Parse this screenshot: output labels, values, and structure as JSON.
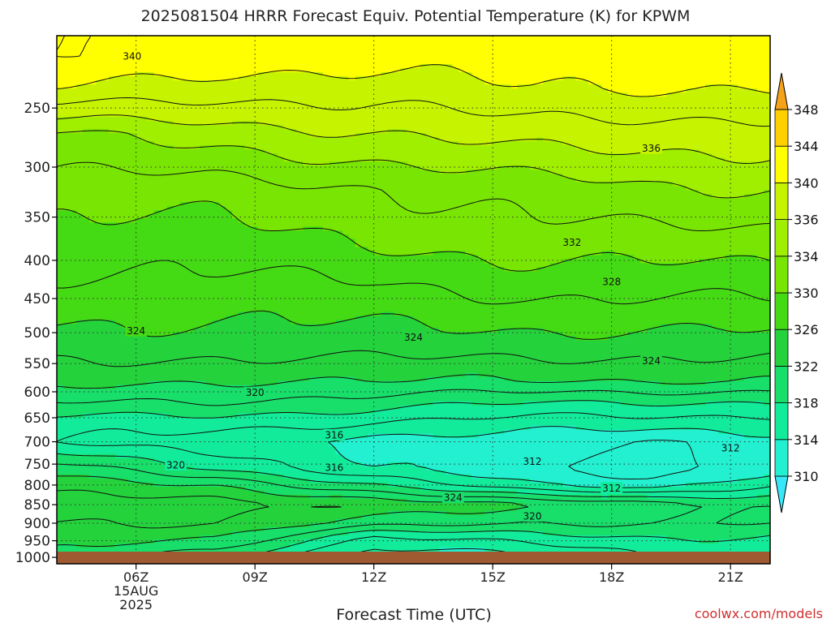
{
  "chart_data": {
    "type": "heatmap",
    "title": "2025081504 HRRR Forecast Equiv. Potential Temperature (K) for KPWM",
    "xlabel": "Forecast Time (UTC)",
    "ylabel": "",
    "x_axis": {
      "unit": "UTC hour",
      "range": [
        4,
        22
      ],
      "ticks": [
        {
          "value": 6,
          "label": "06Z",
          "sublabel": [
            "15AUG",
            "2025"
          ]
        },
        {
          "value": 9,
          "label": "09Z"
        },
        {
          "value": 12,
          "label": "12Z"
        },
        {
          "value": 15,
          "label": "15Z"
        },
        {
          "value": 18,
          "label": "18Z"
        },
        {
          "value": 21,
          "label": "21Z"
        }
      ]
    },
    "y_axis": {
      "unit": "hPa",
      "scale": "log",
      "inverted": true,
      "range": [
        1020,
        200
      ],
      "ticks": [
        250,
        300,
        350,
        400,
        450,
        500,
        550,
        600,
        650,
        700,
        750,
        800,
        850,
        900,
        950,
        1000
      ]
    },
    "grid": true,
    "colorbar": {
      "placement": "right",
      "levels": [
        310,
        314,
        318,
        322,
        326,
        330,
        334,
        336,
        340,
        344,
        348
      ],
      "colors": [
        "#39e8f8",
        "#22f0d0",
        "#12ec9a",
        "#18de6a",
        "#24d23c",
        "#44da14",
        "#78e602",
        "#a0ee00",
        "#c6f400",
        "#ffff00",
        "#ffd000",
        "#f4a21a"
      ]
    },
    "contour_labels": [
      {
        "value": 340,
        "x": 5.9,
        "p": 213
      },
      {
        "value": 336,
        "x": 19.0,
        "p": 283
      },
      {
        "value": 332,
        "x": 17.0,
        "p": 378
      },
      {
        "value": 328,
        "x": 18.0,
        "p": 427
      },
      {
        "value": 324,
        "x": 6.0,
        "p": 497
      },
      {
        "value": 324,
        "x": 13.0,
        "p": 507
      },
      {
        "value": 324,
        "x": 19.0,
        "p": 545
      },
      {
        "value": 320,
        "x": 9.0,
        "p": 601
      },
      {
        "value": 316,
        "x": 11.0,
        "p": 685
      },
      {
        "value": 320,
        "x": 7.0,
        "p": 752
      },
      {
        "value": 316,
        "x": 11.0,
        "p": 757
      },
      {
        "value": 312,
        "x": 16.0,
        "p": 743
      },
      {
        "value": 312,
        "x": 21.0,
        "p": 713
      },
      {
        "value": 312,
        "x": 18.0,
        "p": 807
      },
      {
        "value": 324,
        "x": 14.0,
        "p": 831
      },
      {
        "value": 320,
        "x": 16.0,
        "p": 880
      }
    ],
    "profiles": [
      {
        "x": 4,
        "p": [
          213,
          235,
          270,
          320,
          380,
          450,
          520,
          580,
          620,
          660,
          700,
          760,
          800,
          850,
          900,
          940,
          990,
          1020
        ],
        "theta": [
          342,
          340,
          334,
          331,
          329,
          327,
          325,
          323,
          320,
          317,
          316,
          321,
          323,
          325,
          324,
          323,
          322,
          322
        ]
      },
      {
        "x": 8,
        "p": [
          213,
          235,
          270,
          320,
          380,
          450,
          520,
          580,
          620,
          660,
          700,
          760,
          800,
          850,
          900,
          940,
          990,
          1020
        ],
        "theta": [
          341,
          339,
          335,
          331,
          329,
          327,
          325,
          322,
          320,
          317,
          315,
          318,
          322,
          325,
          324,
          322,
          319,
          318
        ]
      },
      {
        "x": 12,
        "p": [
          213,
          235,
          270,
          320,
          380,
          450,
          520,
          580,
          620,
          660,
          700,
          760,
          800,
          850,
          900,
          940,
          990,
          1020
        ],
        "theta": [
          341,
          339,
          336,
          332,
          330,
          327,
          325,
          322,
          319,
          316,
          313,
          314,
          318,
          324,
          321,
          316,
          313,
          313
        ]
      },
      {
        "x": 16,
        "p": [
          213,
          235,
          270,
          320,
          380,
          450,
          520,
          580,
          620,
          660,
          700,
          760,
          800,
          850,
          900,
          940,
          990,
          1020
        ],
        "theta": [
          341,
          340,
          337,
          333,
          331,
          328,
          325,
          322,
          318,
          315,
          313,
          312,
          314,
          322,
          320,
          317,
          314,
          314
        ]
      },
      {
        "x": 19,
        "p": [
          213,
          235,
          270,
          320,
          380,
          450,
          520,
          580,
          620,
          660,
          700,
          760,
          800,
          850,
          900,
          940,
          990,
          1020
        ],
        "theta": [
          341,
          340,
          337,
          334,
          331,
          328,
          325,
          322,
          318,
          315,
          312,
          311,
          313,
          321,
          320,
          318,
          316,
          316
        ]
      },
      {
        "x": 22,
        "p": [
          213,
          235,
          270,
          320,
          380,
          450,
          520,
          580,
          620,
          660,
          700,
          760,
          800,
          850,
          900,
          940,
          990,
          1020
        ],
        "theta": [
          342,
          340,
          337,
          334,
          331,
          328,
          325,
          322,
          318,
          315,
          313,
          313,
          316,
          320,
          320,
          318,
          316,
          317
        ]
      }
    ],
    "contour_levels": [
      312,
      314,
      316,
      318,
      320,
      322,
      324,
      326,
      328,
      330,
      332,
      334,
      336,
      338,
      340,
      342
    ]
  },
  "credit": "coolwx.com/models",
  "ground_color": "#a05a32"
}
